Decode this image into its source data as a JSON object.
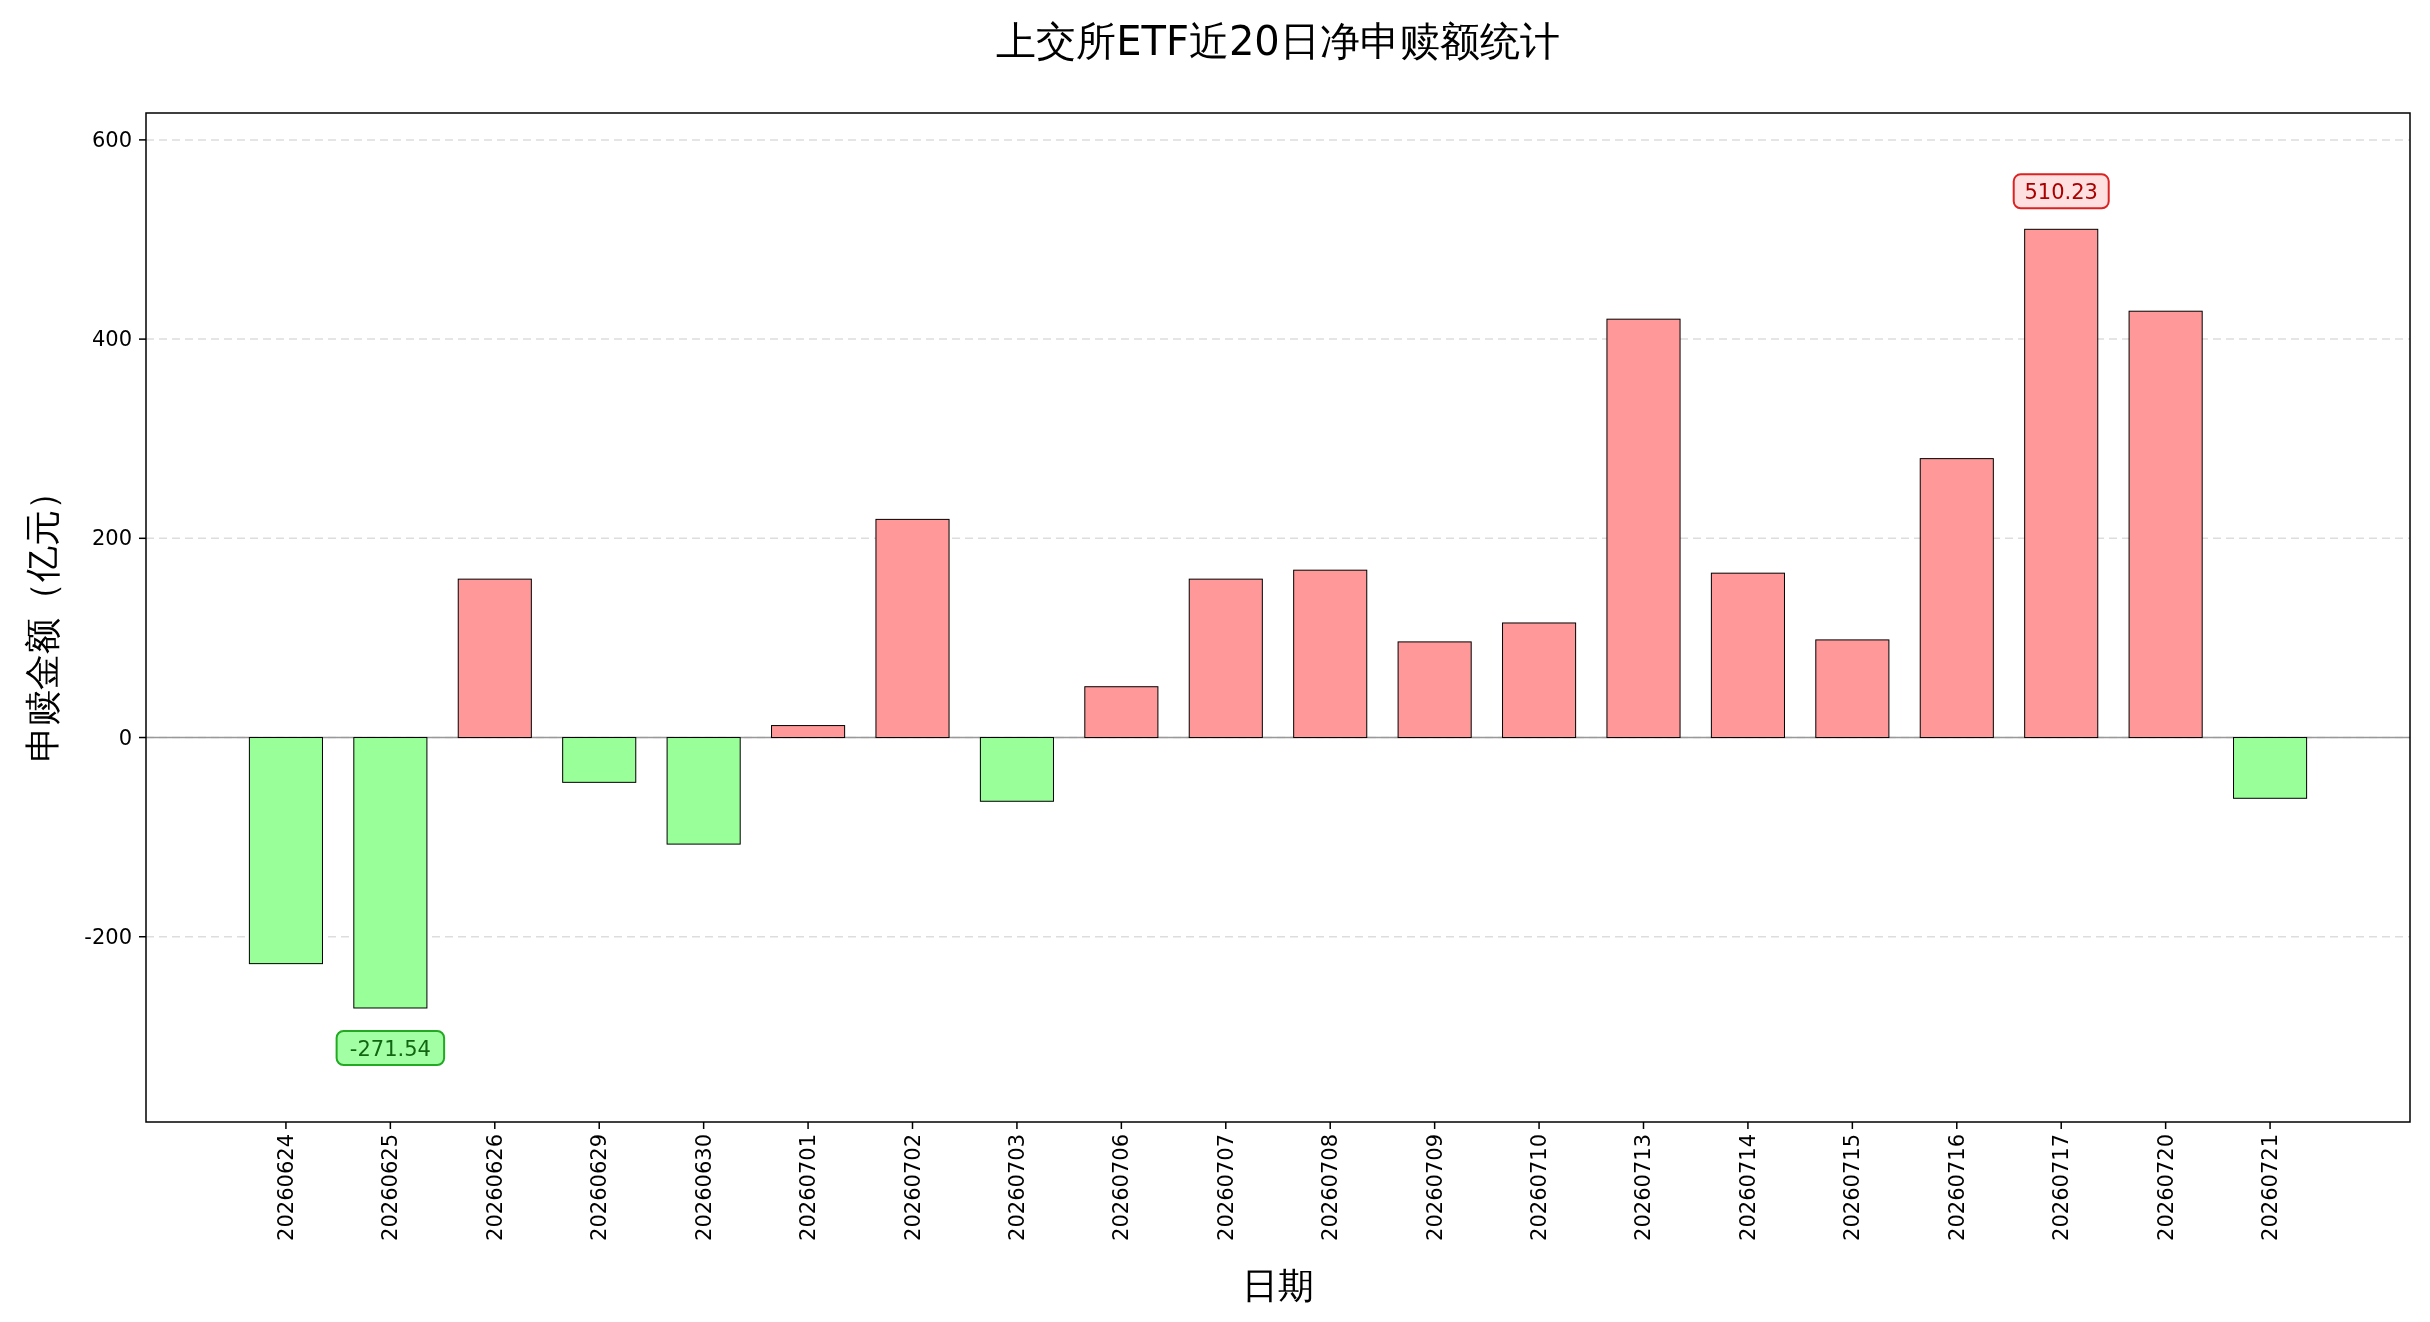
{
  "chart_data": {
    "type": "bar",
    "title": "上交所ETF近20日净申赎额统计",
    "xlabel": "日期",
    "ylabel": "申赎金额（亿元）",
    "categories": [
      "20260624",
      "20260625",
      "20260626",
      "20260629",
      "20260630",
      "20260701",
      "20260702",
      "20260703",
      "20260706",
      "20260707",
      "20260708",
      "20260709",
      "20260710",
      "20260713",
      "20260714",
      "20260715",
      "20260716",
      "20260717",
      "20260720",
      "20260721"
    ],
    "values": [
      -227,
      -271.54,
      159,
      -45,
      -107,
      12,
      219,
      -64,
      51,
      159,
      168,
      96,
      115,
      420,
      165,
      98,
      280,
      510.23,
      428,
      -61
    ],
    "colors": [
      "#99ff99",
      "#99ff99",
      "#ff9999",
      "#99ff99",
      "#99ff99",
      "#ff9999",
      "#ff9999",
      "#99ff99",
      "#ff9999",
      "#ff9999",
      "#ff9999",
      "#ff9999",
      "#ff9999",
      "#ff9999",
      "#ff9999",
      "#ff9999",
      "#ff9999",
      "#ff9999",
      "#ff9999",
      "#99ff99"
    ],
    "value_labels": [
      null,
      "-271.54",
      null,
      null,
      null,
      null,
      null,
      null,
      null,
      null,
      null,
      null,
      null,
      null,
      null,
      null,
      null,
      "510.23",
      null,
      null
    ],
    "ylim": [
      -386,
      627
    ],
    "yticks": [
      -200,
      0,
      200,
      400,
      600
    ],
    "grid": "y",
    "ref_lines": [
      {
        "axis": "y",
        "value": 0,
        "color": "#999999"
      }
    ]
  }
}
